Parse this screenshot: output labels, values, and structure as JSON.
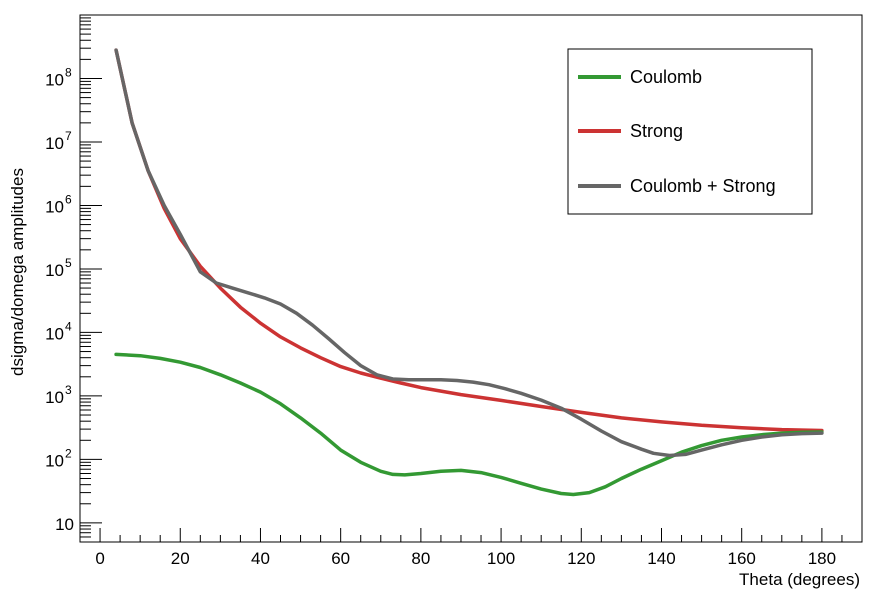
{
  "chart_data": {
    "type": "line",
    "xlabel": "Theta (degrees)",
    "ylabel": "dsigma/domega amplitudes",
    "xlim": [
      -5,
      190
    ],
    "ylim": [
      5,
      1000000000
    ],
    "yscale": "log",
    "x_ticks": [
      0,
      20,
      40,
      60,
      80,
      100,
      120,
      140,
      160,
      180
    ],
    "y_ticks": [
      {
        "value": 10,
        "base": "10",
        "exp": ""
      },
      {
        "value": 100,
        "base": "10",
        "exp": "2"
      },
      {
        "value": 1000,
        "base": "10",
        "exp": "3"
      },
      {
        "value": 10000,
        "base": "10",
        "exp": "4"
      },
      {
        "value": 100000,
        "base": "10",
        "exp": "5"
      },
      {
        "value": 1000000,
        "base": "10",
        "exp": "6"
      },
      {
        "value": 10000000,
        "base": "10",
        "exp": "7"
      },
      {
        "value": 100000000,
        "base": "10",
        "exp": "8"
      }
    ],
    "grid": false,
    "legend_position": "top-right",
    "series": [
      {
        "name": "Coulomb",
        "color": "#339933",
        "x": [
          4,
          10,
          15,
          20,
          25,
          30,
          35,
          40,
          45,
          50,
          55,
          60,
          65,
          70,
          73,
          76,
          80,
          85,
          90,
          95,
          100,
          105,
          110,
          115,
          118,
          122,
          126,
          130,
          135,
          140,
          145,
          150,
          155,
          160,
          165,
          170,
          175,
          180
        ],
        "y": [
          4500,
          4300,
          3900,
          3400,
          2800,
          2150,
          1600,
          1150,
          750,
          450,
          260,
          140,
          90,
          65,
          58,
          57,
          60,
          65,
          67,
          62,
          52,
          42,
          34,
          29,
          28,
          30,
          37,
          50,
          70,
          95,
          130,
          165,
          200,
          225,
          245,
          260,
          268,
          270
        ]
      },
      {
        "name": "Strong",
        "color": "#cc3333",
        "x": [
          4,
          8,
          12,
          16,
          20,
          25,
          30,
          35,
          40,
          45,
          50,
          55,
          60,
          65,
          70,
          75,
          80,
          90,
          100,
          110,
          120,
          130,
          140,
          150,
          160,
          170,
          180
        ],
        "y": [
          280000000,
          20000000,
          3500000,
          900000,
          300000,
          110000,
          50000,
          25000,
          14000,
          8500,
          5700,
          4000,
          2900,
          2300,
          1900,
          1600,
          1350,
          1050,
          850,
          680,
          550,
          450,
          390,
          345,
          315,
          295,
          285
        ]
      },
      {
        "name": "Coulomb + Strong",
        "color": "#666666",
        "x": [
          4,
          8,
          12,
          16,
          20,
          25,
          29,
          33,
          37,
          41,
          45,
          49,
          53,
          57,
          61,
          65,
          69,
          73,
          77,
          81,
          85,
          89,
          93,
          97,
          101,
          105,
          110,
          115,
          120,
          125,
          130,
          135,
          138,
          142,
          146,
          150,
          155,
          160,
          165,
          170,
          175,
          180
        ],
        "y": [
          280000000,
          20000000,
          3500000,
          1000000,
          350000,
          90000,
          60000,
          50000,
          42000,
          35000,
          28000,
          20000,
          13000,
          8000,
          4800,
          3000,
          2150,
          1850,
          1800,
          1800,
          1800,
          1750,
          1650,
          1500,
          1300,
          1100,
          860,
          640,
          430,
          280,
          190,
          145,
          125,
          115,
          120,
          140,
          170,
          200,
          225,
          245,
          255,
          260
        ]
      }
    ]
  }
}
